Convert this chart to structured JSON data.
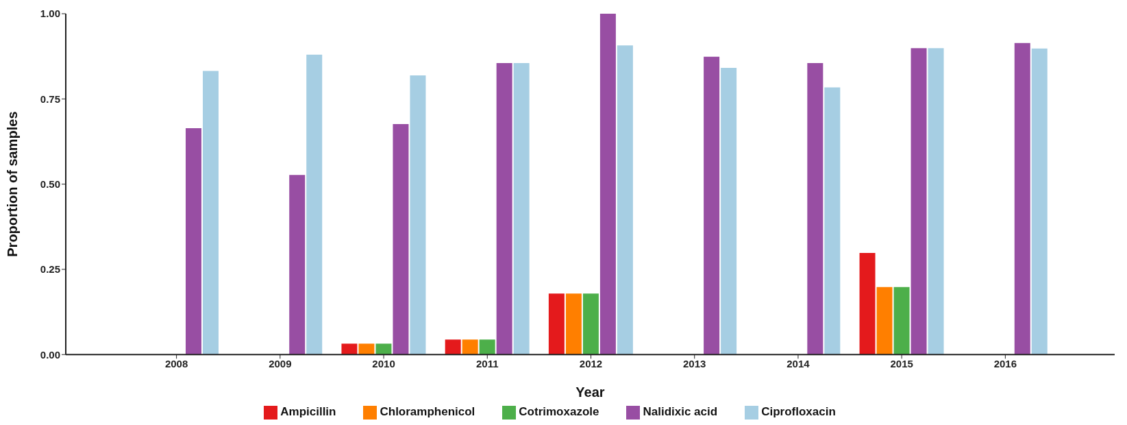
{
  "chart_data": {
    "type": "bar",
    "xlabel": "Year",
    "ylabel": "Proportion of samples",
    "categories": [
      "2008",
      "2009",
      "2010",
      "2011",
      "2012",
      "2013",
      "2014",
      "2015",
      "2016"
    ],
    "series": [
      {
        "name": "Ampicillin",
        "color": "#e41a1c",
        "values": [
          0,
          0,
          0.032,
          0.044,
          0.179,
          0,
          0,
          0.298,
          0
        ]
      },
      {
        "name": "Chloramphenicol",
        "color": "#ff7f00",
        "values": [
          0,
          0,
          0.032,
          0.044,
          0.179,
          0,
          0,
          0.198,
          0
        ]
      },
      {
        "name": "Cotrimoxazole",
        "color": "#4daf4a",
        "values": [
          0,
          0,
          0.032,
          0.044,
          0.179,
          0,
          0,
          0.198,
          0
        ]
      },
      {
        "name": "Nalidixic acid",
        "color": "#984ea3",
        "values": [
          0.664,
          0.527,
          0.676,
          0.855,
          1.0,
          0.874,
          0.855,
          0.899,
          0.914
        ]
      },
      {
        "name": "Ciprofloxacin",
        "color": "#a6cee3",
        "values": [
          0.832,
          0.88,
          0.819,
          0.855,
          0.907,
          0.841,
          0.784,
          0.899,
          0.898
        ]
      }
    ],
    "ylim": [
      0,
      1
    ],
    "yticks": [
      {
        "value": 0,
        "label": "0.00"
      },
      {
        "value": 0.25,
        "label": "0.25"
      },
      {
        "value": 0.5,
        "label": "0.50"
      },
      {
        "value": 0.75,
        "label": "0.75"
      },
      {
        "value": 1,
        "label": "1.00"
      }
    ],
    "legend": "bottom"
  }
}
